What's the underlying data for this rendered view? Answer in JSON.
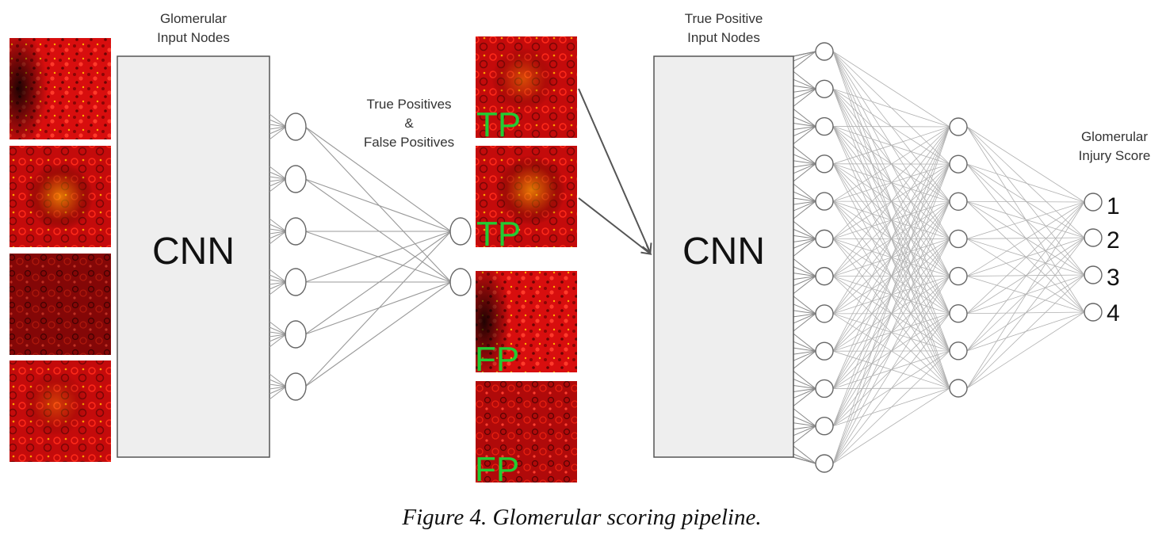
{
  "labels": {
    "glomerular_input": [
      "Glomerular",
      "Input Nodes"
    ],
    "cnn_left": "CNN",
    "tp_fp": [
      "True Positives",
      "&",
      "False Positives"
    ],
    "true_positive_input": [
      "True Positive",
      "Input Nodes"
    ],
    "cnn_right": "CNN",
    "injury_score": [
      "Glomerular",
      "Injury Score"
    ]
  },
  "image_tags": [
    "TP",
    "TP",
    "FP",
    "FP"
  ],
  "scores": [
    "1",
    "2",
    "3",
    "4"
  ],
  "caption": "Figure 4. Glomerular scoring pipeline.",
  "colors": {
    "tissue_red": "#e01010",
    "tag_green": "#22cc33",
    "box_fill": "#eeeeee"
  },
  "icons": [
    "input-image-thumbnail",
    "arrow-icon"
  ]
}
